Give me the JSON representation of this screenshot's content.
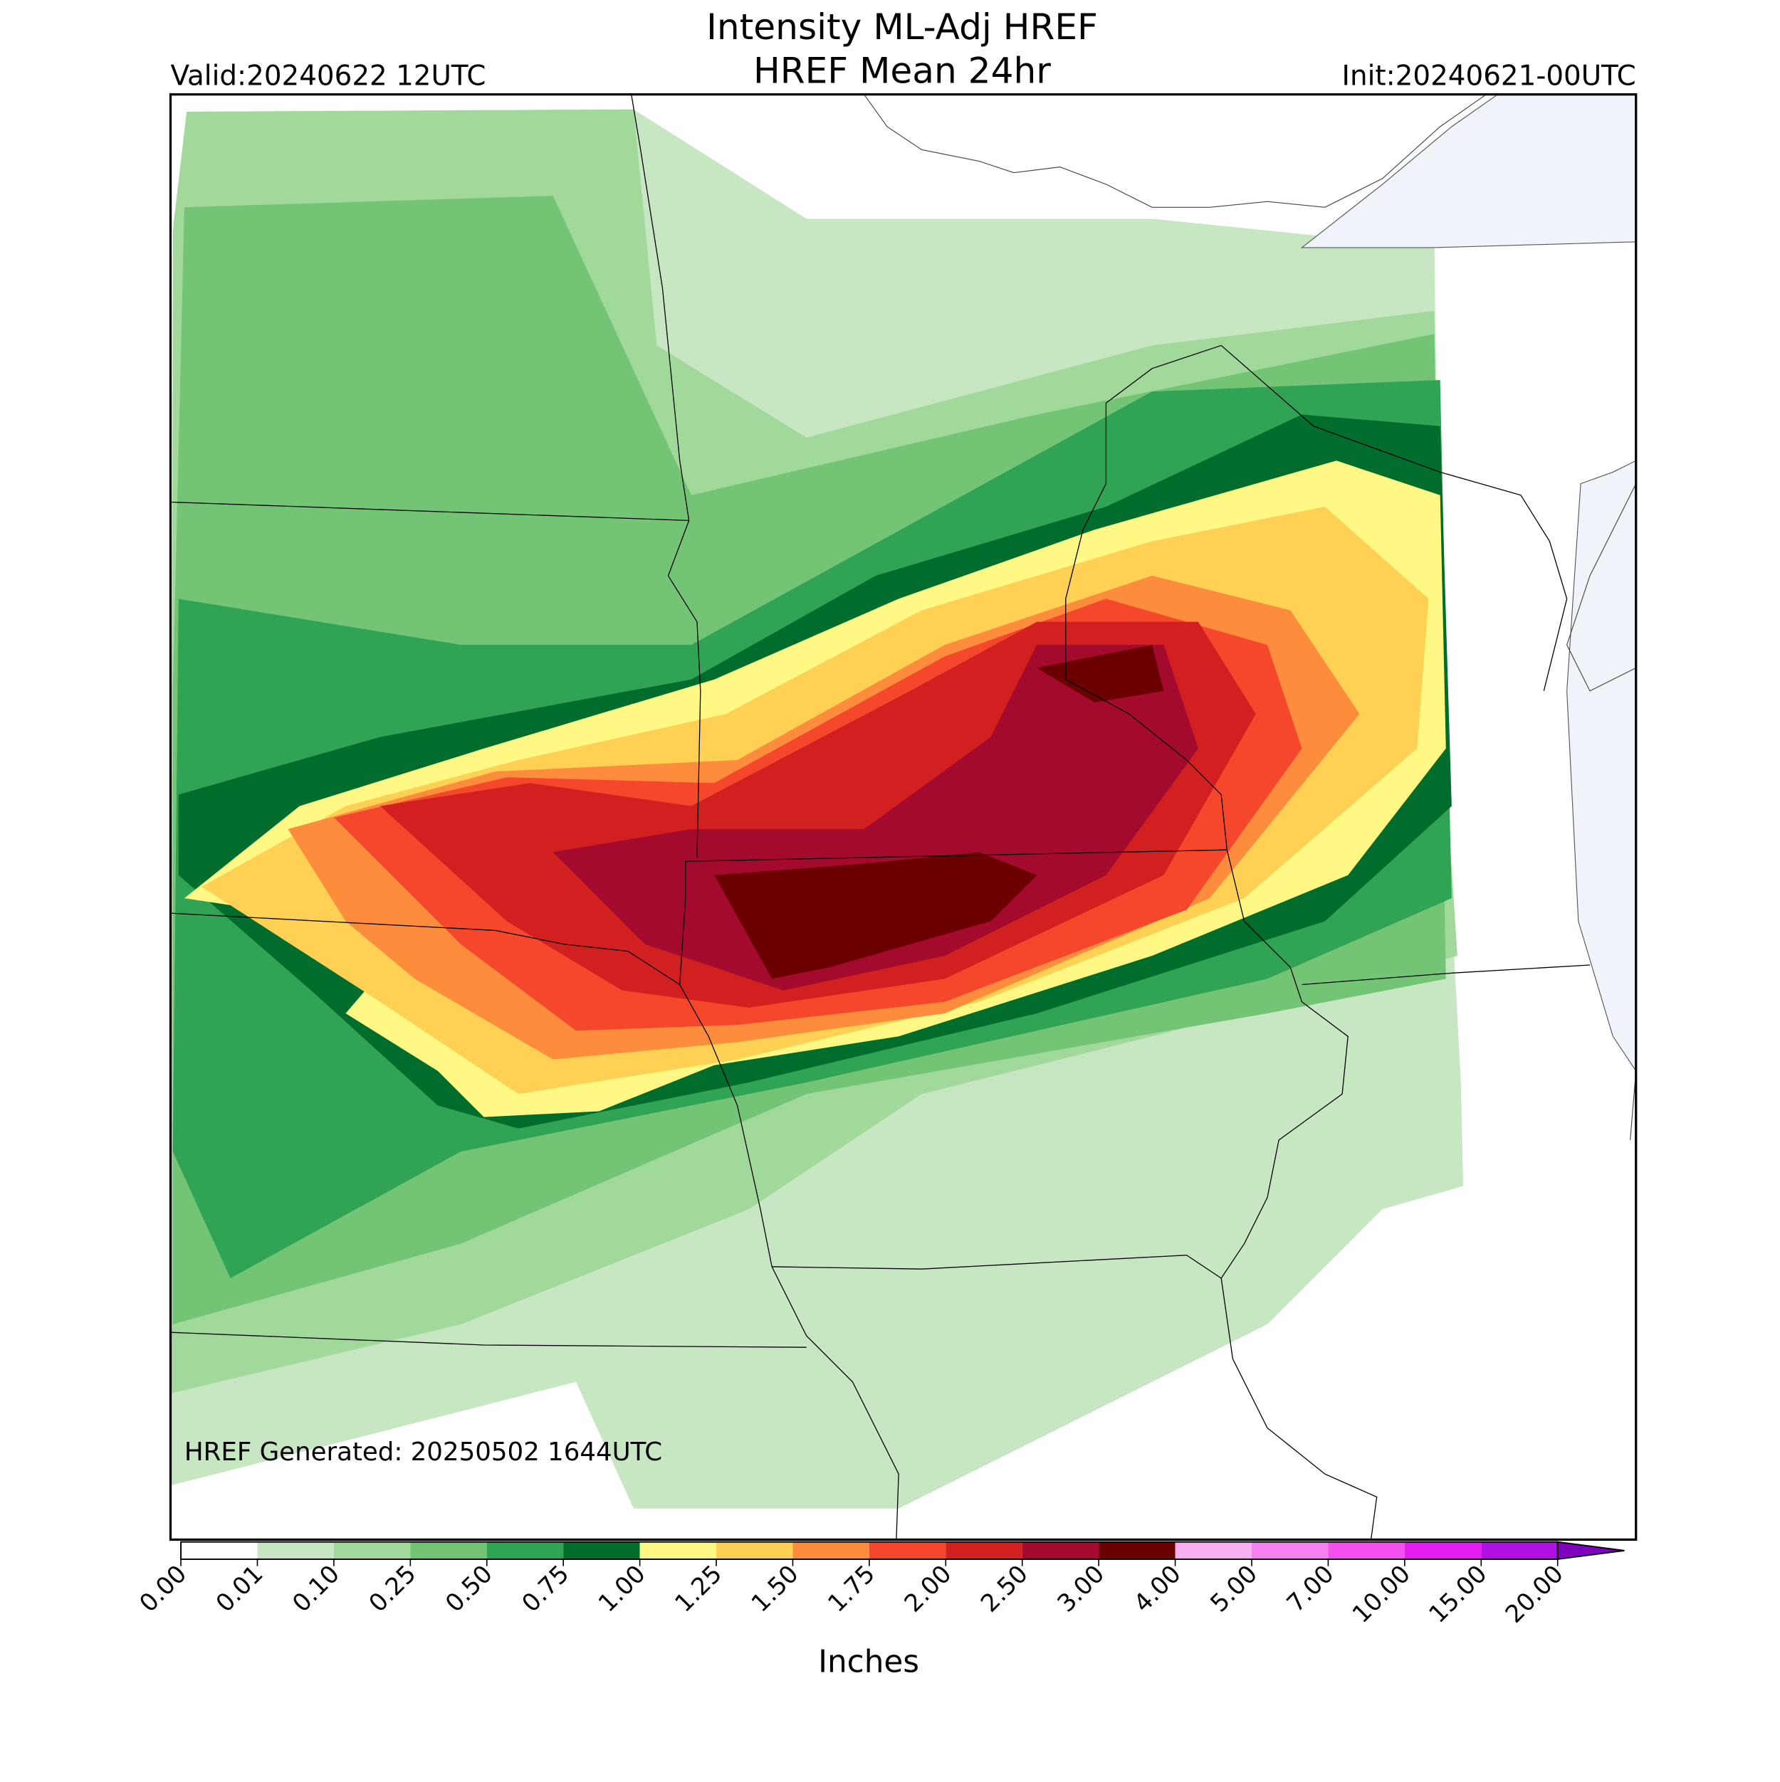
{
  "header": {
    "title": "Intensity ML-Adj HREF",
    "subtitle": "HREF Mean 24hr",
    "valid": "Valid:20240622 12UTC",
    "init": "Init:20240621-00UTC"
  },
  "map": {
    "annotation": "HREF Generated: 20250502 1644UTC"
  },
  "colorbar": {
    "label": "Inches",
    "ticks": [
      {
        "value": 0,
        "label": "0.00"
      },
      {
        "value": 0.01,
        "label": "0.01"
      },
      {
        "value": 0.1,
        "label": "0.10"
      },
      {
        "value": 0.25,
        "label": "0.25"
      },
      {
        "value": 0.5,
        "label": "0.50"
      },
      {
        "value": 0.75,
        "label": "0.75"
      },
      {
        "value": 1,
        "label": "1.00"
      },
      {
        "value": 1.25,
        "label": "1.25"
      },
      {
        "value": 1.5,
        "label": "1.50"
      },
      {
        "value": 1.75,
        "label": "1.75"
      },
      {
        "value": 2,
        "label": "2.00"
      },
      {
        "value": 2.5,
        "label": "2.50"
      },
      {
        "value": 3,
        "label": "3.00"
      },
      {
        "value": 4,
        "label": "4.00"
      },
      {
        "value": 5,
        "label": "5.00"
      },
      {
        "value": 7,
        "label": "7.00"
      },
      {
        "value": 10,
        "label": "10.00"
      },
      {
        "value": 15,
        "label": "15.00"
      },
      {
        "value": 20,
        "label": "20.00"
      }
    ],
    "colors": [
      "#ffffff",
      "#c7e6c2",
      "#a1d99b",
      "#74c476",
      "#31a354",
      "#006d2c",
      "#fff884",
      "#fed053",
      "#fd8d3c",
      "#f4472b",
      "#d21f1f",
      "#a30a2e",
      "#6b0000",
      "#f8b0f0",
      "#f780f0",
      "#f450f0",
      "#e41ef0",
      "#b010e0"
    ],
    "extend_color": "#8000c0"
  }
}
